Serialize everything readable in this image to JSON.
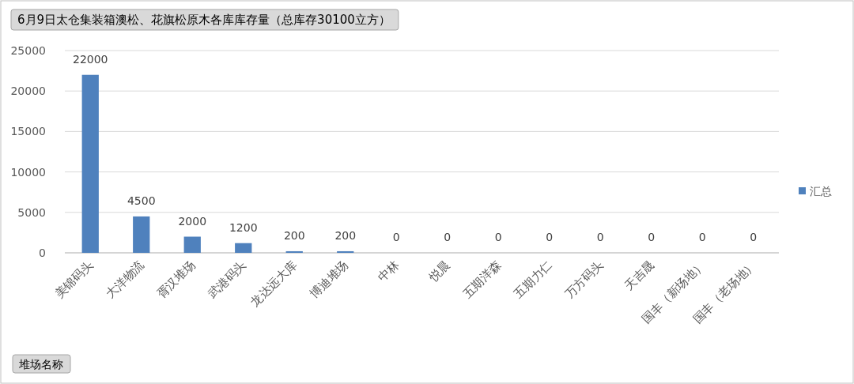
{
  "chart_data": {
    "type": "bar",
    "title": "6月9日太仓集装箱澳松、花旗松原木各库库存量（总库存30100立方）",
    "xlabel": "堆场名称",
    "categories": [
      "美锦码头",
      "大洋物流",
      "胥汉堆场",
      "武港码头",
      "龙达远大库",
      "博迪堆场",
      "中林",
      "悦晨",
      "五期洋森",
      "五期力仁",
      "万方码头",
      "天吉晟",
      "国丰（新场地）",
      "国丰（老场地）"
    ],
    "series": [
      {
        "name": "汇总",
        "color": "#4f81bd",
        "values": [
          22000,
          4500,
          2000,
          1200,
          200,
          200,
          0,
          0,
          0,
          0,
          0,
          0,
          0,
          0
        ]
      }
    ],
    "ylim": [
      0,
      25000
    ],
    "yticks": [
      0,
      5000,
      10000,
      15000,
      20000,
      25000
    ],
    "grid": "y",
    "legend": "right",
    "data_labels": true
  }
}
